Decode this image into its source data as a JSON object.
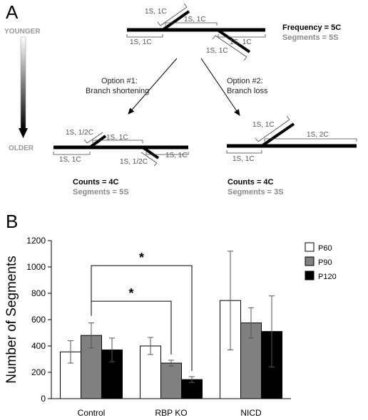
{
  "panel_a": {
    "letter": "A",
    "age_top": "YOUNGER",
    "age_bottom": "OLDER",
    "top": {
      "labels": [
        "1S, 1C",
        "1S, 1C",
        "1S, 1C",
        "1S, 1C",
        "1S, 1C"
      ],
      "frequency": "Frequency = 5C",
      "segments": "Segments = 5S"
    },
    "option1": {
      "line1": "Option #1:",
      "line2": "Branch shortening",
      "labels": [
        "1S, 1/2C",
        "1S, 1C",
        "1S, 1C",
        "1S, 1/2C",
        "1S, 1C"
      ],
      "counts": "Counts = 4C",
      "segments": "Segments = 5S"
    },
    "option2": {
      "line1": "Option #2:",
      "line2": "Branch loss",
      "labels": [
        "1S, 1C",
        "1S, 2C",
        "1S, 1C"
      ],
      "counts": "Counts = 4C",
      "segments": "Segments = 3S"
    }
  },
  "panel_b": {
    "letter": "B"
  },
  "chart_data": {
    "type": "bar",
    "ylabel": "Number of Segments",
    "xlabel": "",
    "ylim": [
      0,
      1200
    ],
    "yticks": [
      0,
      200,
      400,
      600,
      800,
      1000,
      1200
    ],
    "categories": [
      "Control",
      "RBP KO",
      "NICD"
    ],
    "series": [
      {
        "name": "P60",
        "color": "#ffffff",
        "values": [
          355,
          400,
          745
        ],
        "errors": [
          85,
          65,
          375
        ]
      },
      {
        "name": "P90",
        "color": "#808080",
        "values": [
          480,
          270,
          575
        ],
        "errors": [
          95,
          22,
          115
        ]
      },
      {
        "name": "P120",
        "color": "#000000",
        "values": [
          370,
          145,
          510
        ],
        "errors": [
          90,
          22,
          270
        ]
      }
    ],
    "legend_position": "top-right",
    "grid": false,
    "significance": [
      {
        "from": "Control P90",
        "to": "RBP KO P90",
        "label": "*"
      },
      {
        "from": "Control P90",
        "to": "RBP KO P120",
        "label": "*"
      }
    ]
  }
}
